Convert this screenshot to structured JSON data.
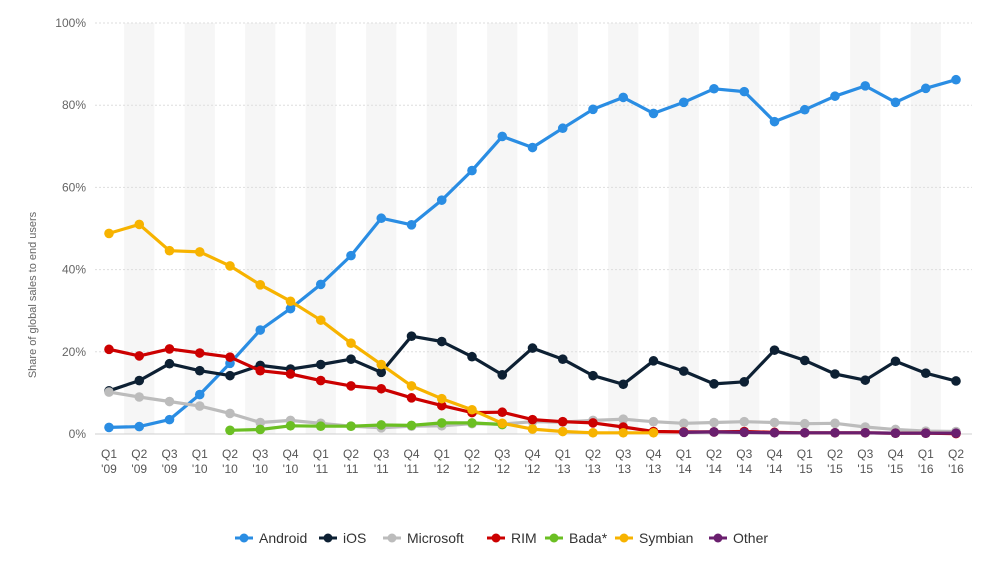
{
  "chart_data": {
    "type": "line",
    "title": "",
    "xlabel": "",
    "ylabel": "Share of global sales to end users",
    "ylim": [
      0,
      100
    ],
    "y_ticks": [
      "0%",
      "20%",
      "40%",
      "60%",
      "80%",
      "100%"
    ],
    "y_tick_values": [
      0,
      20,
      40,
      60,
      80,
      100
    ],
    "grid": true,
    "legend_position": "bottom",
    "categories": [
      [
        "Q1",
        "'09"
      ],
      [
        "Q2",
        "'09"
      ],
      [
        "Q3",
        "'09"
      ],
      [
        "Q1",
        "'10"
      ],
      [
        "Q2",
        "'10"
      ],
      [
        "Q3",
        "'10"
      ],
      [
        "Q4",
        "'10"
      ],
      [
        "Q1",
        "'11"
      ],
      [
        "Q2",
        "'11"
      ],
      [
        "Q3",
        "'11"
      ],
      [
        "Q4",
        "'11"
      ],
      [
        "Q1",
        "'12"
      ],
      [
        "Q2",
        "'12"
      ],
      [
        "Q3",
        "'12"
      ],
      [
        "Q4",
        "'12"
      ],
      [
        "Q1",
        "'13"
      ],
      [
        "Q2",
        "'13"
      ],
      [
        "Q3",
        "'13"
      ],
      [
        "Q4",
        "'13"
      ],
      [
        "Q1",
        "'14"
      ],
      [
        "Q2",
        "'14"
      ],
      [
        "Q3",
        "'14"
      ],
      [
        "Q4",
        "'14"
      ],
      [
        "Q1",
        "'15"
      ],
      [
        "Q2",
        "'15"
      ],
      [
        "Q3",
        "'15"
      ],
      [
        "Q4",
        "'15"
      ],
      [
        "Q1",
        "'16"
      ],
      [
        "Q2",
        "'16"
      ]
    ],
    "series": [
      {
        "name": "Android",
        "color": "#2a8de3",
        "values": [
          1.6,
          1.8,
          3.5,
          9.6,
          17.2,
          25.3,
          30.5,
          36.4,
          43.4,
          52.5,
          50.9,
          56.9,
          64.1,
          72.4,
          69.7,
          74.4,
          79.0,
          81.9,
          78.0,
          80.7,
          84.0,
          83.3,
          76.0,
          78.9,
          82.2,
          84.7,
          80.7,
          84.1,
          86.2
        ]
      },
      {
        "name": "iOS",
        "color": "#0d2033",
        "values": [
          10.5,
          13.0,
          17.1,
          15.4,
          14.2,
          16.7,
          15.8,
          16.9,
          18.2,
          15.0,
          23.8,
          22.5,
          18.8,
          14.4,
          20.9,
          18.2,
          14.2,
          12.1,
          17.8,
          15.3,
          12.2,
          12.7,
          20.4,
          17.9,
          14.6,
          13.1,
          17.7,
          14.8,
          12.9
        ]
      },
      {
        "name": "Microsoft",
        "color": "#bcbcbc",
        "values": [
          10.2,
          9.0,
          7.9,
          6.8,
          5.0,
          2.8,
          3.3,
          2.6,
          1.9,
          1.5,
          1.9,
          2.0,
          2.5,
          2.4,
          3.0,
          2.9,
          3.3,
          3.6,
          3.0,
          2.6,
          2.8,
          3.0,
          2.8,
          2.5,
          2.6,
          1.7,
          1.1,
          0.7,
          0.6
        ]
      },
      {
        "name": "RIM",
        "color": "#cc0000",
        "values": [
          20.6,
          19.0,
          20.7,
          19.7,
          18.7,
          15.4,
          14.6,
          13.0,
          11.7,
          11.0,
          8.8,
          6.9,
          5.2,
          5.3,
          3.5,
          3.0,
          2.7,
          1.7,
          0.6,
          0.5,
          0.5,
          0.6,
          0.4,
          0.3,
          0.3,
          0.3,
          0.2,
          0.2,
          0.1
        ]
      },
      {
        "name": "Bada*",
        "color": "#6bbf23",
        "values": [
          null,
          null,
          null,
          null,
          0.9,
          1.1,
          2.0,
          1.9,
          1.9,
          2.2,
          2.1,
          2.7,
          2.7,
          2.3,
          null,
          null,
          null,
          null,
          null,
          null,
          null,
          null,
          null,
          null,
          null,
          null,
          null,
          null,
          null
        ]
      },
      {
        "name": "Symbian",
        "color": "#f7b300",
        "values": [
          48.8,
          51.0,
          44.6,
          44.3,
          40.9,
          36.3,
          32.3,
          27.7,
          22.1,
          16.9,
          11.7,
          8.6,
          5.9,
          2.6,
          1.2,
          0.6,
          0.3,
          0.3,
          0.3,
          null,
          null,
          null,
          null,
          null,
          null,
          null,
          null,
          null,
          null
        ]
      },
      {
        "name": "Other",
        "color": "#6a1f6e",
        "values": [
          null,
          null,
          null,
          null,
          null,
          null,
          null,
          null,
          null,
          null,
          null,
          null,
          null,
          null,
          null,
          null,
          null,
          null,
          null,
          0.4,
          0.5,
          0.4,
          0.3,
          0.3,
          0.3,
          0.3,
          0.2,
          0.2,
          0.2
        ]
      }
    ]
  }
}
